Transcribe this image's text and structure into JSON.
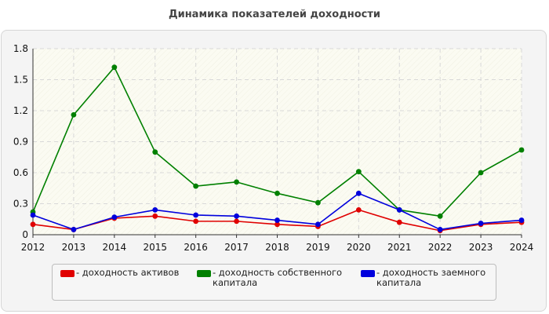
{
  "chart_data": {
    "type": "line",
    "title": "Динамика показателей доходности",
    "x": [
      "2012",
      "2013",
      "2014",
      "2015",
      "2016",
      "2017",
      "2018",
      "2019",
      "2020",
      "2021",
      "2022",
      "2023",
      "2024"
    ],
    "ylim": [
      0,
      1.8
    ],
    "yticks": [
      "0",
      "0.3",
      "0.6",
      "0.9",
      "1.2",
      "1.5",
      "1.8"
    ],
    "grid": true,
    "legend_position": "bottom",
    "series": [
      {
        "name": "- доходность активов",
        "color": "#e00000",
        "values": [
          0.1,
          0.05,
          0.16,
          0.18,
          0.13,
          0.13,
          0.1,
          0.08,
          0.24,
          0.12,
          0.04,
          0.1,
          0.12
        ]
      },
      {
        "name": "- доходность собственного капитала",
        "color": "#008000",
        "values": [
          0.22,
          1.16,
          1.62,
          0.8,
          0.47,
          0.51,
          0.4,
          0.31,
          0.61,
          0.24,
          0.18,
          0.6,
          0.82
        ]
      },
      {
        "name": "- доходность заемного капитала",
        "color": "#0000dd",
        "values": [
          0.19,
          0.05,
          0.17,
          0.24,
          0.19,
          0.18,
          0.14,
          0.1,
          0.4,
          0.24,
          0.05,
          0.11,
          0.14
        ]
      }
    ]
  }
}
